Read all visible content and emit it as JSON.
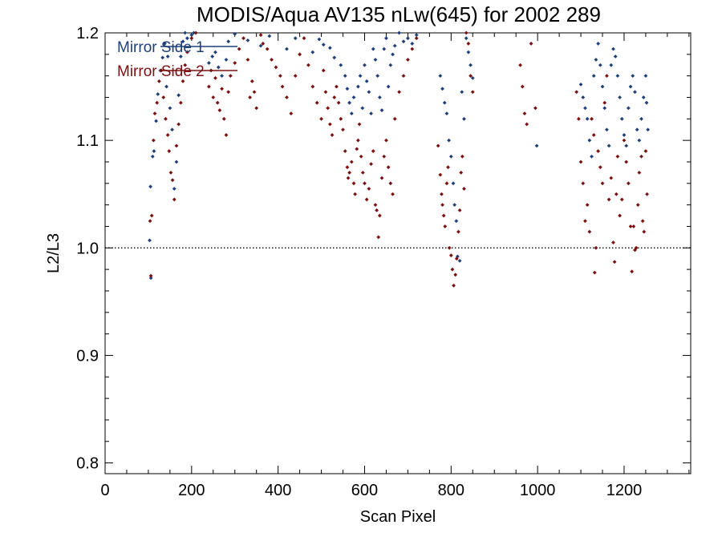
{
  "chart_data": {
    "type": "scatter",
    "title": "MODIS/Aqua AV135 nLw(645) for 2002 289",
    "xlabel": "Scan Pixel",
    "ylabel": "L2/L3",
    "xlim": [
      0,
      1354
    ],
    "ylim": [
      0.79,
      1.2
    ],
    "xticks": [
      0,
      200,
      400,
      600,
      800,
      1000,
      1200
    ],
    "xtick_labels": [
      "0",
      "200",
      "400",
      "600",
      "800",
      "1000",
      "1200"
    ],
    "yticks": [
      0.8,
      0.9,
      1.0,
      1.1,
      1.2
    ],
    "ytick_labels": [
      "0.8",
      "0.9",
      "1.0",
      "1.1",
      "1.2"
    ],
    "reference_line": {
      "y": 1.0,
      "style": "dotted"
    },
    "legend_position": "top-left",
    "colors": {
      "side1": "#1f3f7a",
      "side2": "#7a1010"
    },
    "series": [
      {
        "name": "Mirror Side 1",
        "points": [
          [
            103,
            1.007
          ],
          [
            105,
            1.057
          ],
          [
            106,
            0.972
          ],
          [
            110,
            1.085
          ],
          [
            113,
            1.09
          ],
          [
            118,
            1.118
          ],
          [
            122,
            1.143
          ],
          [
            128,
            1.165
          ],
          [
            133,
            1.177
          ],
          [
            138,
            1.19
          ],
          [
            142,
            1.15
          ],
          [
            145,
            1.178
          ],
          [
            150,
            1.13
          ],
          [
            155,
            1.11
          ],
          [
            160,
            1.055
          ],
          [
            165,
            1.08
          ],
          [
            170,
            1.142
          ],
          [
            175,
            1.178
          ],
          [
            180,
            1.192
          ],
          [
            185,
            1.2
          ],
          [
            190,
            1.195
          ],
          [
            200,
            1.198
          ],
          [
            205,
            1.2
          ],
          [
            240,
            1.172
          ],
          [
            248,
            1.178
          ],
          [
            255,
            1.182
          ],
          [
            262,
            1.168
          ],
          [
            270,
            1.16
          ],
          [
            280,
            1.175
          ],
          [
            285,
            1.192
          ],
          [
            300,
            1.199
          ],
          [
            330,
            1.193
          ],
          [
            360,
            1.188
          ],
          [
            380,
            1.197
          ],
          [
            420,
            1.185
          ],
          [
            440,
            1.195
          ],
          [
            480,
            1.182
          ],
          [
            495,
            1.194
          ],
          [
            505,
            1.189
          ],
          [
            520,
            1.186
          ],
          [
            530,
            1.177
          ],
          [
            545,
            1.17
          ],
          [
            555,
            1.16
          ],
          [
            560,
            1.148
          ],
          [
            565,
            1.135
          ],
          [
            570,
            1.125
          ],
          [
            575,
            1.14
          ],
          [
            585,
            1.15
          ],
          [
            590,
            1.16
          ],
          [
            595,
            1.13
          ],
          [
            600,
            1.17
          ],
          [
            605,
            1.155
          ],
          [
            610,
            1.145
          ],
          [
            615,
            1.125
          ],
          [
            620,
            1.185
          ],
          [
            625,
            1.175
          ],
          [
            630,
            1.16
          ],
          [
            635,
            1.14
          ],
          [
            640,
            1.128
          ],
          [
            645,
            1.185
          ],
          [
            650,
            1.195
          ],
          [
            655,
            1.15
          ],
          [
            660,
            1.17
          ],
          [
            665,
            1.18
          ],
          [
            670,
            1.188
          ],
          [
            680,
            1.2
          ],
          [
            690,
            1.192
          ],
          [
            700,
            1.195
          ],
          [
            710,
            1.19
          ],
          [
            720,
            1.198
          ],
          [
            775,
            1.16
          ],
          [
            780,
            1.148
          ],
          [
            785,
            1.135
          ],
          [
            790,
            1.125
          ],
          [
            795,
            1.1
          ],
          [
            800,
            1.085
          ],
          [
            805,
            1.06
          ],
          [
            808,
            1.04
          ],
          [
            812,
            1.025
          ],
          [
            815,
            0.992
          ],
          [
            820,
            0.988
          ],
          [
            825,
            1.145
          ],
          [
            830,
            1.12
          ],
          [
            835,
            1.195
          ],
          [
            840,
            1.182
          ],
          [
            845,
            1.17
          ],
          [
            850,
            1.158
          ],
          [
            998,
            1.095
          ],
          [
            1100,
            1.152
          ],
          [
            1105,
            1.14
          ],
          [
            1110,
            1.13
          ],
          [
            1115,
            1.12
          ],
          [
            1120,
            1.1
          ],
          [
            1125,
            1.085
          ],
          [
            1130,
            1.16
          ],
          [
            1135,
            1.175
          ],
          [
            1140,
            1.19
          ],
          [
            1145,
            1.17
          ],
          [
            1150,
            1.15
          ],
          [
            1155,
            1.13
          ],
          [
            1160,
            1.11
          ],
          [
            1165,
            1.095
          ],
          [
            1170,
            1.17
          ],
          [
            1175,
            1.185
          ],
          [
            1180,
            1.178
          ],
          [
            1185,
            1.16
          ],
          [
            1190,
            1.14
          ],
          [
            1195,
            1.12
          ],
          [
            1200,
            1.105
          ],
          [
            1205,
            1.095
          ],
          [
            1210,
            1.13
          ],
          [
            1215,
            1.15
          ],
          [
            1220,
            1.16
          ],
          [
            1225,
            1.145
          ],
          [
            1230,
            1.11
          ],
          [
            1235,
            1.1
          ],
          [
            1240,
            1.12
          ],
          [
            1245,
            1.14
          ],
          [
            1250,
            1.16
          ],
          [
            1252,
            1.135
          ],
          [
            1255,
            1.11
          ]
        ]
      },
      {
        "name": "Mirror Side 2",
        "points": [
          [
            104,
            1.025
          ],
          [
            106,
            0.974
          ],
          [
            108,
            1.03
          ],
          [
            112,
            1.1
          ],
          [
            115,
            1.125
          ],
          [
            120,
            1.135
          ],
          [
            125,
            1.155
          ],
          [
            130,
            1.165
          ],
          [
            135,
            1.14
          ],
          [
            140,
            1.12
          ],
          [
            145,
            1.105
          ],
          [
            148,
            1.09
          ],
          [
            152,
            1.07
          ],
          [
            156,
            1.063
          ],
          [
            160,
            1.045
          ],
          [
            165,
            1.095
          ],
          [
            170,
            1.115
          ],
          [
            175,
            1.135
          ],
          [
            180,
            1.155
          ],
          [
            185,
            1.17
          ],
          [
            190,
            1.182
          ],
          [
            200,
            1.195
          ],
          [
            210,
            1.2
          ],
          [
            240,
            1.15
          ],
          [
            245,
            1.165
          ],
          [
            250,
            1.14
          ],
          [
            255,
            1.158
          ],
          [
            260,
            1.135
          ],
          [
            265,
            1.128
          ],
          [
            270,
            1.148
          ],
          [
            275,
            1.12
          ],
          [
            280,
            1.105
          ],
          [
            285,
            1.145
          ],
          [
            290,
            1.16
          ],
          [
            300,
            1.172
          ],
          [
            310,
            1.185
          ],
          [
            320,
            1.195
          ],
          [
            330,
            1.175
          ],
          [
            335,
            1.14
          ],
          [
            340,
            1.155
          ],
          [
            345,
            1.145
          ],
          [
            350,
            1.13
          ],
          [
            360,
            1.198
          ],
          [
            365,
            1.19
          ],
          [
            375,
            1.185
          ],
          [
            385,
            1.175
          ],
          [
            395,
            1.168
          ],
          [
            405,
            1.16
          ],
          [
            410,
            1.15
          ],
          [
            420,
            1.14
          ],
          [
            430,
            1.125
          ],
          [
            440,
            1.16
          ],
          [
            450,
            1.18
          ],
          [
            460,
            1.195
          ],
          [
            470,
            1.17
          ],
          [
            480,
            1.15
          ],
          [
            490,
            1.135
          ],
          [
            500,
            1.12
          ],
          [
            505,
            1.165
          ],
          [
            510,
            1.145
          ],
          [
            515,
            1.13
          ],
          [
            520,
            1.115
          ],
          [
            525,
            1.105
          ],
          [
            530,
            1.14
          ],
          [
            535,
            1.15
          ],
          [
            540,
            1.135
          ],
          [
            545,
            1.12
          ],
          [
            550,
            1.11
          ],
          [
            555,
            1.09
          ],
          [
            560,
            1.075
          ],
          [
            562,
            1.065
          ],
          [
            565,
            1.07
          ],
          [
            570,
            1.08
          ],
          [
            575,
            1.06
          ],
          [
            578,
            1.05
          ],
          [
            582,
            1.092
          ],
          [
            585,
            1.1
          ],
          [
            588,
            1.115
          ],
          [
            592,
            1.085
          ],
          [
            596,
            1.07
          ],
          [
            600,
            1.06
          ],
          [
            605,
            1.045
          ],
          [
            610,
            1.055
          ],
          [
            615,
            1.078
          ],
          [
            620,
            1.09
          ],
          [
            625,
            1.04
          ],
          [
            628,
            1.035
          ],
          [
            632,
            1.01
          ],
          [
            635,
            1.03
          ],
          [
            640,
            1.065
          ],
          [
            645,
            1.085
          ],
          [
            650,
            1.1
          ],
          [
            655,
            1.075
          ],
          [
            660,
            1.06
          ],
          [
            665,
            1.05
          ],
          [
            670,
            1.12
          ],
          [
            680,
            1.145
          ],
          [
            690,
            1.16
          ],
          [
            700,
            1.175
          ],
          [
            710,
            1.185
          ],
          [
            720,
            1.195
          ],
          [
            770,
            1.095
          ],
          [
            775,
            1.068
          ],
          [
            778,
            1.05
          ],
          [
            780,
            1.04
          ],
          [
            783,
            1.03
          ],
          [
            786,
            1.02
          ],
          [
            790,
            1.06
          ],
          [
            793,
            1.075
          ],
          [
            796,
            1.0
          ],
          [
            800,
            0.993
          ],
          [
            803,
            0.98
          ],
          [
            806,
            0.965
          ],
          [
            810,
            0.975
          ],
          [
            813,
            0.99
          ],
          [
            817,
            1.015
          ],
          [
            820,
            1.035
          ],
          [
            823,
            1.07
          ],
          [
            826,
            1.085
          ],
          [
            830,
            1.055
          ],
          [
            835,
            1.2
          ],
          [
            840,
            1.19
          ],
          [
            845,
            1.16
          ],
          [
            850,
            1.145
          ],
          [
            960,
            1.17
          ],
          [
            965,
            1.15
          ],
          [
            970,
            1.125
          ],
          [
            975,
            1.115
          ],
          [
            985,
            1.19
          ],
          [
            995,
            1.13
          ],
          [
            1090,
            1.145
          ],
          [
            1095,
            1.12
          ],
          [
            1100,
            1.08
          ],
          [
            1105,
            1.06
          ],
          [
            1110,
            1.025
          ],
          [
            1115,
            1.04
          ],
          [
            1120,
            1.015
          ],
          [
            1125,
            1.12
          ],
          [
            1130,
            1.105
          ],
          [
            1132,
            0.977
          ],
          [
            1135,
            1.0
          ],
          [
            1140,
            1.09
          ],
          [
            1145,
            1.075
          ],
          [
            1150,
            1.06
          ],
          [
            1155,
            1.135
          ],
          [
            1160,
            1.16
          ],
          [
            1165,
            1.045
          ],
          [
            1170,
            1.065
          ],
          [
            1175,
            1.005
          ],
          [
            1178,
            0.987
          ],
          [
            1182,
            1.05
          ],
          [
            1185,
            1.085
          ],
          [
            1190,
            1.03
          ],
          [
            1195,
            1.045
          ],
          [
            1200,
            1.1
          ],
          [
            1205,
            1.08
          ],
          [
            1210,
            1.06
          ],
          [
            1215,
            1.02
          ],
          [
            1218,
            0.978
          ],
          [
            1222,
            1.02
          ],
          [
            1225,
            0.998
          ],
          [
            1228,
            1.0
          ],
          [
            1232,
            1.04
          ],
          [
            1235,
            1.07
          ],
          [
            1240,
            1.085
          ],
          [
            1243,
            1.025
          ],
          [
            1246,
            1.015
          ],
          [
            1250,
            1.09
          ],
          [
            1253,
            1.05
          ]
        ]
      }
    ]
  }
}
